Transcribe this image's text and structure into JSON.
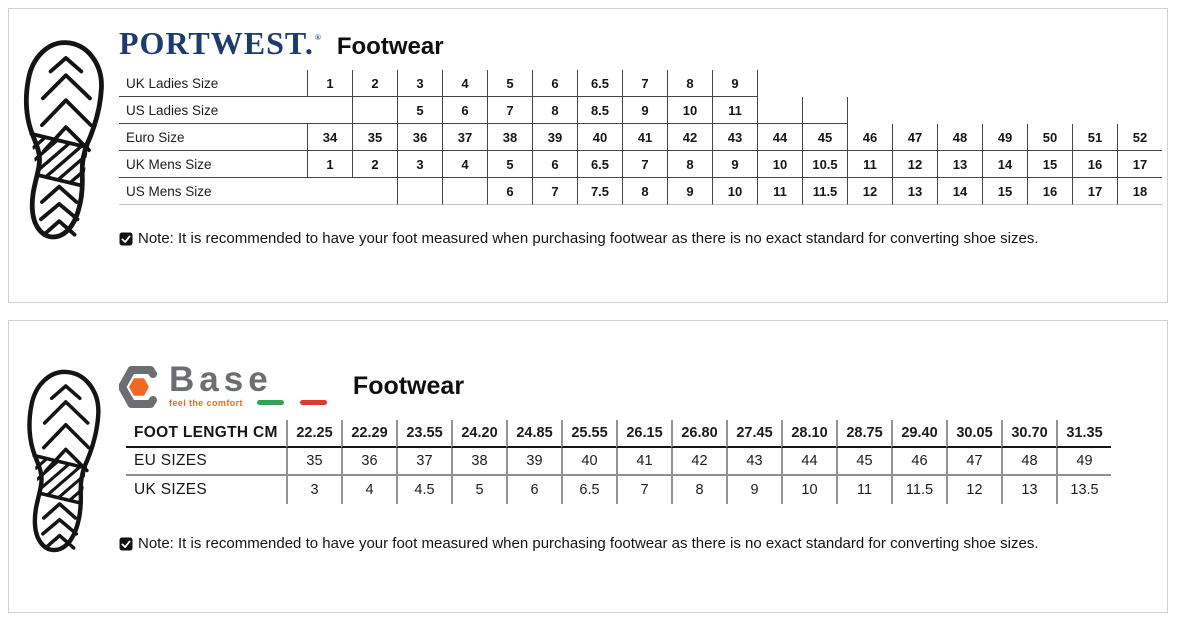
{
  "portwest": {
    "brand": "PORTWEST.",
    "brand_reg": "®",
    "section_title": "Footwear",
    "note": "Note: It is recommended to have your foot measured when purchasing footwear as there is no exact standard for converting shoe sizes.",
    "brand_color": "#1e3a6e",
    "table": {
      "rows": [
        {
          "label": "UK Ladies Size",
          "bottom": "fit",
          "rule": "thin",
          "values_bold": true,
          "values": [
            "1",
            "2",
            "3",
            "4",
            "5",
            "6",
            "6.5",
            "7",
            "8",
            "9",
            null,
            null,
            null,
            null,
            null,
            null,
            null,
            null,
            null
          ]
        },
        {
          "label": "US Ladies Size",
          "bottom": "fit",
          "rule": "thin",
          "values_bold": true,
          "values": [
            null,
            "",
            "5",
            "6",
            "7",
            "8",
            "8.5",
            "9",
            "10",
            "11",
            "",
            "",
            null,
            null,
            null,
            null,
            null,
            null,
            null
          ]
        },
        {
          "label": "Euro Size",
          "bottom": "full",
          "rule": "thin",
          "values_bold": true,
          "values": [
            "34",
            "35",
            "36",
            "37",
            "38",
            "39",
            "40",
            "41",
            "42",
            "43",
            "44",
            "45",
            "46",
            "47",
            "48",
            "49",
            "50",
            "51",
            "52"
          ]
        },
        {
          "label": "UK Mens Size",
          "bottom": "full",
          "rule": "thin",
          "values_bold": true,
          "values": [
            "1",
            "2",
            "3",
            "4",
            "5",
            "6",
            "6.5",
            "7",
            "8",
            "9",
            "10",
            "10.5",
            "11",
            "12",
            "13",
            "14",
            "15",
            "16",
            "17"
          ]
        },
        {
          "label": "US Mens Size",
          "bottom": "full",
          "rule": "faint",
          "values_bold": true,
          "values": [
            null,
            null,
            "",
            "",
            "6",
            "7",
            "7.5",
            "8",
            "9",
            "10",
            "11",
            "11.5",
            "12",
            "13",
            "14",
            "15",
            "16",
            "17",
            "18"
          ]
        }
      ]
    }
  },
  "base": {
    "brand": "Base",
    "tagline": "feel the comfort",
    "section_title": "Footwear",
    "note": "Note: It is recommended to have your foot measured when purchasing footwear as there is no exact standard for converting shoe sizes.",
    "brand_gray": "#6d6e71",
    "brand_orange": "#f26822",
    "flag_green": "#33a457",
    "flag_red": "#e2372f",
    "table": {
      "rows": [
        {
          "label": "FOOT LENGTH CM",
          "bottom": "full",
          "rule": "dark",
          "label_bold": true,
          "values_bold": true,
          "values": [
            "22.25",
            "22.29",
            "23.55",
            "24.20",
            "24.85",
            "25.55",
            "26.15",
            "26.80",
            "27.45",
            "28.10",
            "28.75",
            "29.40",
            "30.05",
            "30.70",
            "31.35"
          ]
        },
        {
          "label": "EU SIZES",
          "bottom": "full",
          "rule": "gray",
          "values": [
            "35",
            "36",
            "37",
            "38",
            "39",
            "40",
            "41",
            "42",
            "43",
            "44",
            "45",
            "46",
            "47",
            "48",
            "49"
          ]
        },
        {
          "label": "UK SIZES",
          "bottom": "none",
          "values": [
            "3",
            "4",
            "4.5",
            "5",
            "6",
            "6.5",
            "7",
            "8",
            "9",
            "10",
            "11",
            "11.5",
            "12",
            "13",
            "13.5"
          ]
        }
      ]
    }
  }
}
